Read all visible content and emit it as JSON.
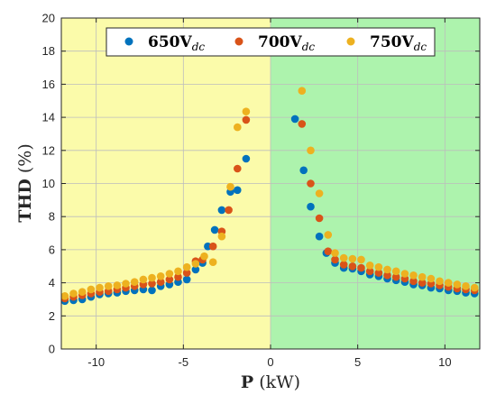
{
  "chart_data": {
    "type": "scatter",
    "title": "",
    "xlabel": {
      "bold": "P",
      "rest": " (kW)"
    },
    "ylabel": {
      "bold": "THD",
      "rest": " (%)"
    },
    "xlim": [
      -12,
      12
    ],
    "ylim": [
      0,
      20
    ],
    "xticks": [
      -10,
      -5,
      0,
      5,
      10
    ],
    "xtick_labels": [
      "-10",
      "-5",
      "0",
      "5",
      "10"
    ],
    "yticks": [
      0,
      2,
      4,
      6,
      8,
      10,
      12,
      14,
      16,
      18,
      20
    ],
    "ytick_labels": [
      "0",
      "2",
      "4",
      "6",
      "8",
      "10",
      "12",
      "14",
      "16",
      "18",
      "20"
    ],
    "grid": true,
    "legend": "top-center",
    "regions": [
      {
        "x": [
          -12,
          0
        ],
        "color": "#fbfbaa"
      },
      {
        "x": [
          0,
          12
        ],
        "color": "#adf3ad"
      }
    ],
    "series": [
      {
        "name": "650Vdc",
        "legend_main": "650V",
        "legend_sub": "dc",
        "color": "#0072bd",
        "points": [
          [
            -11.8,
            2.9
          ],
          [
            -11.3,
            2.95
          ],
          [
            -10.8,
            3.0
          ],
          [
            -10.3,
            3.15
          ],
          [
            -9.8,
            3.3
          ],
          [
            -9.3,
            3.35
          ],
          [
            -8.8,
            3.4
          ],
          [
            -8.3,
            3.5
          ],
          [
            -7.8,
            3.55
          ],
          [
            -7.3,
            3.6
          ],
          [
            -6.8,
            3.55
          ],
          [
            -6.3,
            3.8
          ],
          [
            -5.8,
            3.9
          ],
          [
            -5.3,
            4.05
          ],
          [
            -4.8,
            4.2
          ],
          [
            -4.3,
            4.8
          ],
          [
            -3.9,
            5.2
          ],
          [
            -3.6,
            6.2
          ],
          [
            -3.2,
            7.2
          ],
          [
            -2.8,
            8.4
          ],
          [
            -2.3,
            9.5
          ],
          [
            -1.9,
            9.6
          ],
          [
            -1.4,
            11.5
          ],
          [
            1.4,
            13.9
          ],
          [
            1.9,
            10.8
          ],
          [
            2.3,
            8.6
          ],
          [
            2.8,
            6.8
          ],
          [
            3.2,
            5.8
          ],
          [
            3.7,
            5.2
          ],
          [
            4.2,
            4.9
          ],
          [
            4.7,
            4.85
          ],
          [
            5.2,
            4.7
          ],
          [
            5.7,
            4.5
          ],
          [
            6.2,
            4.4
          ],
          [
            6.7,
            4.25
          ],
          [
            7.2,
            4.15
          ],
          [
            7.7,
            4.05
          ],
          [
            8.2,
            3.9
          ],
          [
            8.7,
            3.85
          ],
          [
            9.2,
            3.7
          ],
          [
            9.7,
            3.65
          ],
          [
            10.2,
            3.55
          ],
          [
            10.7,
            3.5
          ],
          [
            11.2,
            3.4
          ],
          [
            11.7,
            3.35
          ]
        ]
      },
      {
        "name": "700Vdc",
        "legend_main": "700V",
        "legend_sub": "dc",
        "color": "#d95319",
        "points": [
          [
            -11.8,
            3.05
          ],
          [
            -11.3,
            3.15
          ],
          [
            -10.8,
            3.25
          ],
          [
            -10.3,
            3.35
          ],
          [
            -9.8,
            3.45
          ],
          [
            -9.3,
            3.5
          ],
          [
            -8.8,
            3.6
          ],
          [
            -8.3,
            3.7
          ],
          [
            -7.8,
            3.8
          ],
          [
            -7.3,
            3.9
          ],
          [
            -6.8,
            3.95
          ],
          [
            -6.3,
            4.05
          ],
          [
            -5.8,
            4.2
          ],
          [
            -5.3,
            4.35
          ],
          [
            -4.8,
            4.6
          ],
          [
            -4.3,
            5.3
          ],
          [
            -3.9,
            5.4
          ],
          [
            -3.3,
            6.2
          ],
          [
            -2.8,
            7.1
          ],
          [
            -2.4,
            8.4
          ],
          [
            -1.9,
            10.9
          ],
          [
            -1.4,
            13.85
          ],
          [
            1.8,
            13.6
          ],
          [
            2.3,
            10.0
          ],
          [
            2.8,
            7.9
          ],
          [
            3.3,
            5.9
          ],
          [
            3.7,
            5.4
          ],
          [
            4.2,
            5.1
          ],
          [
            4.7,
            5.0
          ],
          [
            5.2,
            4.9
          ],
          [
            5.7,
            4.7
          ],
          [
            6.2,
            4.6
          ],
          [
            6.7,
            4.45
          ],
          [
            7.2,
            4.35
          ],
          [
            7.7,
            4.25
          ],
          [
            8.2,
            4.1
          ],
          [
            8.7,
            4.0
          ],
          [
            9.2,
            3.95
          ],
          [
            9.7,
            3.85
          ],
          [
            10.2,
            3.75
          ],
          [
            10.7,
            3.65
          ],
          [
            11.2,
            3.6
          ],
          [
            11.7,
            3.55
          ]
        ]
      },
      {
        "name": "750Vdc",
        "legend_main": "750V",
        "legend_sub": "dc",
        "color": "#edb120",
        "points": [
          [
            -11.8,
            3.2
          ],
          [
            -11.3,
            3.35
          ],
          [
            -10.8,
            3.45
          ],
          [
            -10.3,
            3.6
          ],
          [
            -9.8,
            3.7
          ],
          [
            -9.3,
            3.8
          ],
          [
            -8.8,
            3.85
          ],
          [
            -8.3,
            3.95
          ],
          [
            -7.8,
            4.05
          ],
          [
            -7.3,
            4.2
          ],
          [
            -6.8,
            4.3
          ],
          [
            -6.3,
            4.4
          ],
          [
            -5.8,
            4.55
          ],
          [
            -5.3,
            4.7
          ],
          [
            -4.8,
            4.95
          ],
          [
            -4.3,
            5.15
          ],
          [
            -3.8,
            5.6
          ],
          [
            -3.3,
            5.25
          ],
          [
            -2.8,
            6.8
          ],
          [
            -2.3,
            9.8
          ],
          [
            -1.9,
            13.4
          ],
          [
            -1.4,
            14.35
          ],
          [
            1.8,
            15.6
          ],
          [
            2.3,
            12.0
          ],
          [
            2.8,
            9.4
          ],
          [
            3.3,
            6.9
          ],
          [
            3.7,
            5.8
          ],
          [
            4.2,
            5.5
          ],
          [
            4.7,
            5.45
          ],
          [
            5.2,
            5.4
          ],
          [
            5.7,
            5.05
          ],
          [
            6.2,
            4.95
          ],
          [
            6.7,
            4.8
          ],
          [
            7.2,
            4.7
          ],
          [
            7.7,
            4.55
          ],
          [
            8.2,
            4.45
          ],
          [
            8.7,
            4.35
          ],
          [
            9.2,
            4.25
          ],
          [
            9.7,
            4.1
          ],
          [
            10.2,
            4.0
          ],
          [
            10.7,
            3.9
          ],
          [
            11.2,
            3.8
          ],
          [
            11.7,
            3.7
          ]
        ]
      }
    ]
  }
}
